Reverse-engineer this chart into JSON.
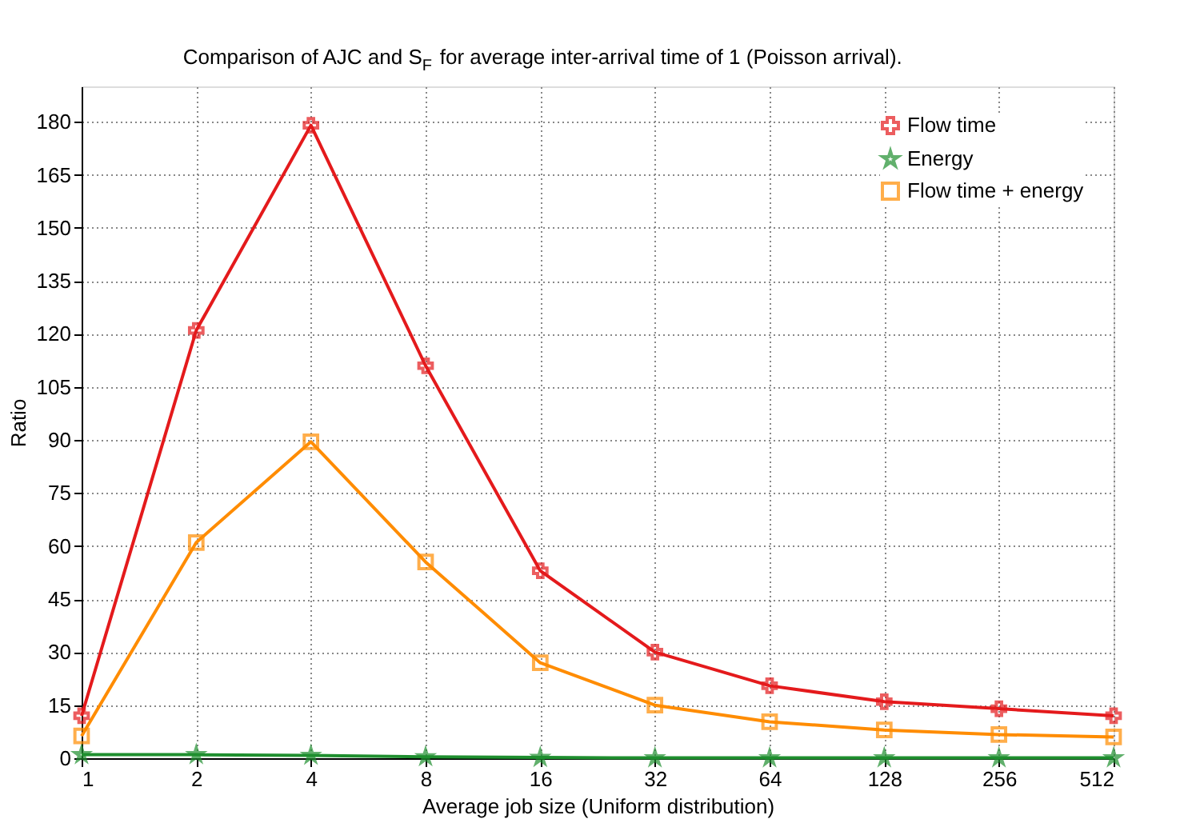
{
  "chart_data": {
    "type": "line",
    "title": "Comparison of AJC and S$_{F}$ for average inter-arrival time of 1 (Poisson arrival).",
    "xlabel": "Average job size (Uniform distribution)",
    "ylabel": "Ratio",
    "categories": [
      "1",
      "2",
      "4",
      "8",
      "16",
      "32",
      "64",
      "128",
      "256",
      "512"
    ],
    "series": [
      {
        "name": "Flow time",
        "color": "#e41a1c",
        "marker": "cross",
        "values": [
          12,
          121,
          179,
          111,
          53,
          30,
          20.5,
          16,
          14,
          12
        ]
      },
      {
        "name": "Energy",
        "color": "#1f8f2f",
        "marker": "star",
        "values": [
          1,
          1,
          0.8,
          0.4,
          0.2,
          0.1,
          0.1,
          0.1,
          0.1,
          0.1
        ]
      },
      {
        "name": "Flow time + energy",
        "color": "#ff8c00",
        "marker": "square",
        "values": [
          6.3,
          61,
          89.5,
          55.5,
          27,
          15,
          10.3,
          8,
          6.7,
          6
        ]
      }
    ],
    "ylim": [
      0,
      190
    ],
    "yticks": [
      0,
      15,
      30,
      45,
      60,
      75,
      90,
      105,
      120,
      135,
      150,
      165,
      180
    ],
    "grid": true,
    "legend": "top right",
    "line_style": "solid"
  }
}
